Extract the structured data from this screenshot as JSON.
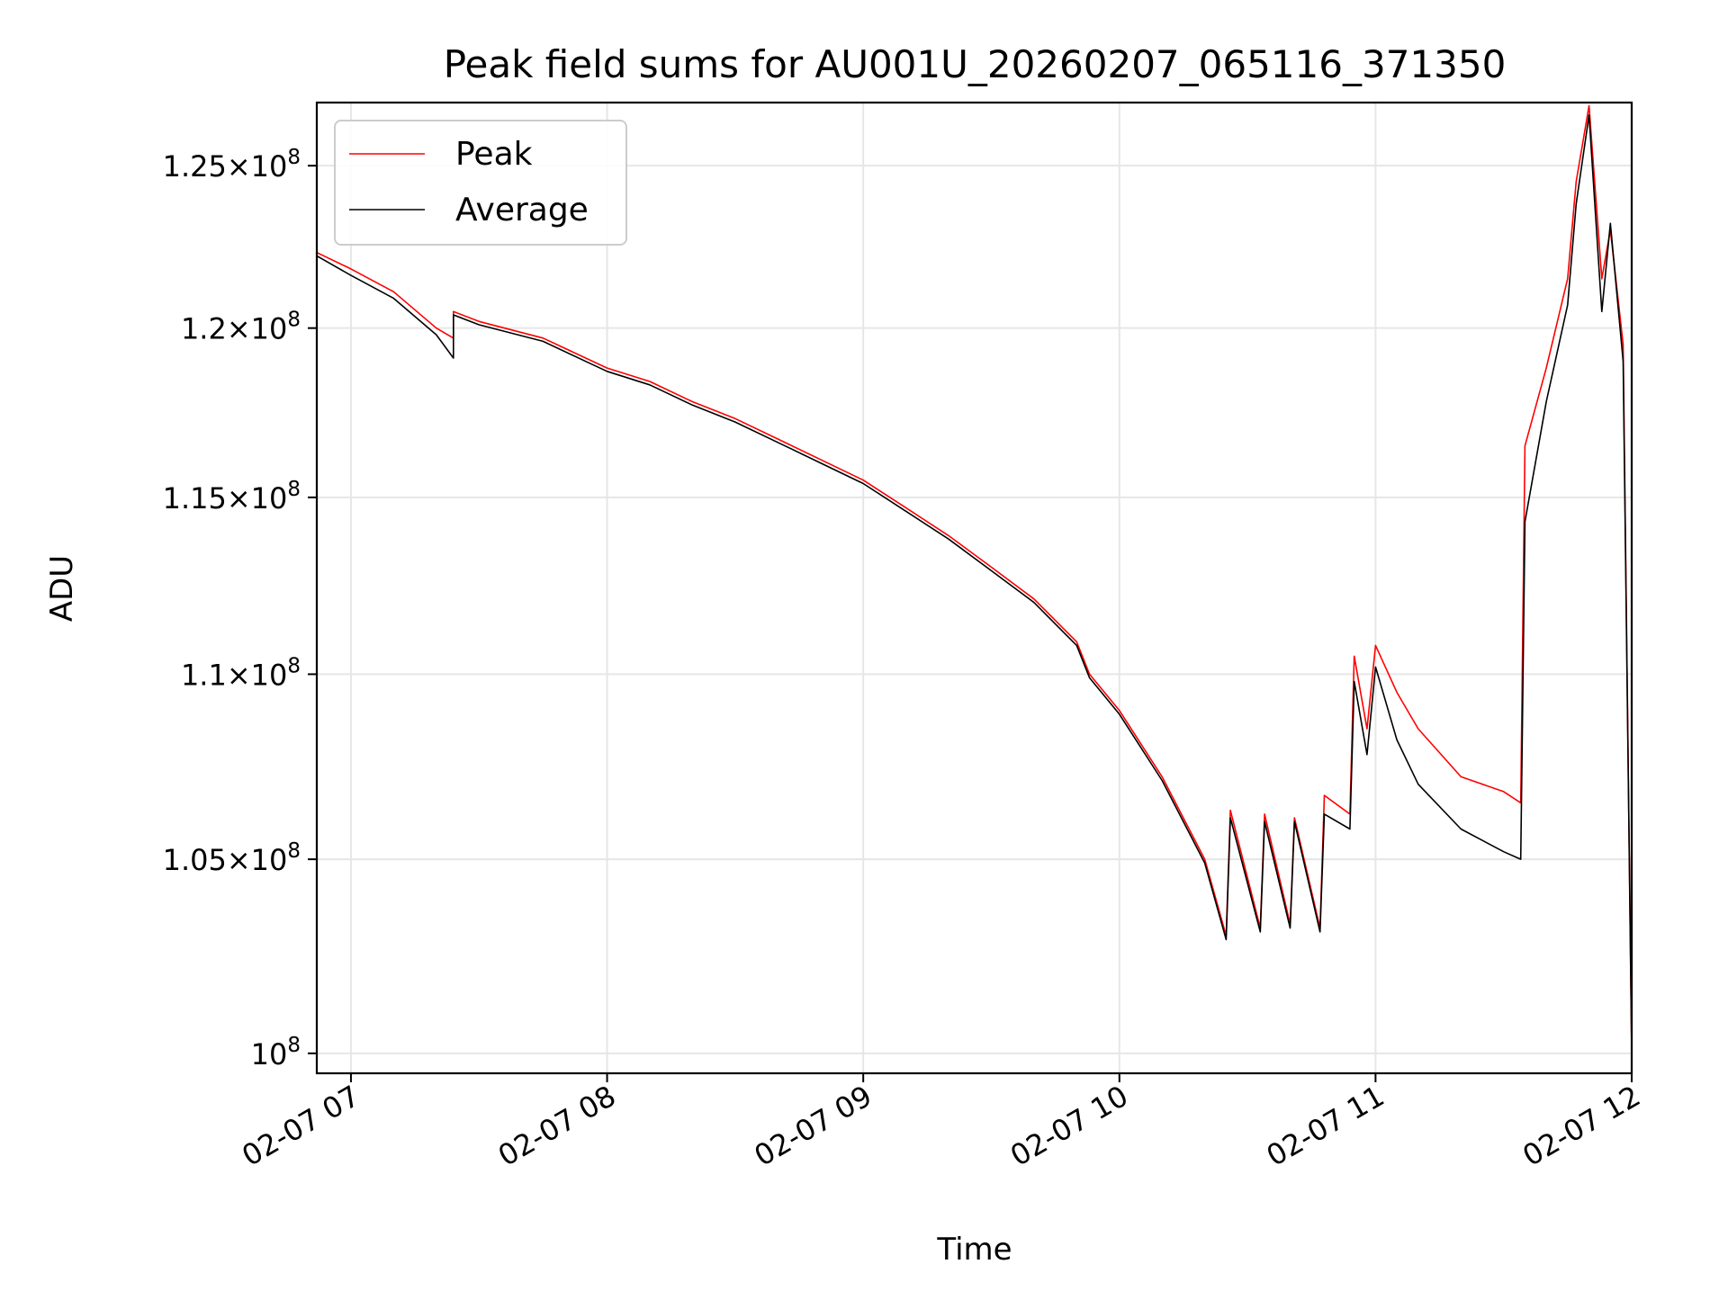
{
  "chart_data": {
    "type": "line",
    "title": "Peak field sums for AU001U_20260207_065116_371350",
    "xlabel": "Time",
    "ylabel": "ADU",
    "yscale": "log",
    "grid": true,
    "legend_position": "upper-left",
    "x_range": [
      "2026-02-07 06:52",
      "2026-02-07 12:00"
    ],
    "ylim": [
      99500000,
      127000000
    ],
    "x_ticks": [
      {
        "value": "2026-02-07 07:00",
        "label": "02-07 07"
      },
      {
        "value": "2026-02-07 08:00",
        "label": "02-07 08"
      },
      {
        "value": "2026-02-07 09:00",
        "label": "02-07 09"
      },
      {
        "value": "2026-02-07 10:00",
        "label": "02-07 10"
      },
      {
        "value": "2026-02-07 11:00",
        "label": "02-07 11"
      },
      {
        "value": "2026-02-07 12:00",
        "label": "02-07 12"
      }
    ],
    "y_ticks": [
      {
        "value": 100000000,
        "mantissa": "",
        "exponent": "8",
        "label": "10^8"
      },
      {
        "value": 105000000,
        "mantissa": "1.05",
        "exponent": "8",
        "label": "1.05×10^8"
      },
      {
        "value": 110000000,
        "mantissa": "1.1",
        "exponent": "8",
        "label": "1.1×10^8"
      },
      {
        "value": 115000000,
        "mantissa": "1.15",
        "exponent": "8",
        "label": "1.15×10^8"
      },
      {
        "value": 120000000,
        "mantissa": "1.2",
        "exponent": "8",
        "label": "1.2×10^8"
      },
      {
        "value": 125000000,
        "mantissa": "1.25",
        "exponent": "8",
        "label": "1.25×10^8"
      }
    ],
    "series": [
      {
        "name": "Peak",
        "color": "#ff0000",
        "x": [
          "2026-02-07 06:52",
          "2026-02-07 07:00",
          "2026-02-07 07:10",
          "2026-02-07 07:20",
          "2026-02-07 07:24",
          "2026-02-07 07:24",
          "2026-02-07 07:30",
          "2026-02-07 07:45",
          "2026-02-07 07:55",
          "2026-02-07 08:00",
          "2026-02-07 08:10",
          "2026-02-07 08:20",
          "2026-02-07 08:30",
          "2026-02-07 08:40",
          "2026-02-07 08:50",
          "2026-02-07 09:00",
          "2026-02-07 09:10",
          "2026-02-07 09:20",
          "2026-02-07 09:30",
          "2026-02-07 09:40",
          "2026-02-07 09:50",
          "2026-02-07 09:53",
          "2026-02-07 10:00",
          "2026-02-07 10:10",
          "2026-02-07 10:20",
          "2026-02-07 10:25",
          "2026-02-07 10:26",
          "2026-02-07 10:33",
          "2026-02-07 10:34",
          "2026-02-07 10:40",
          "2026-02-07 10:41",
          "2026-02-07 10:47",
          "2026-02-07 10:48",
          "2026-02-07 10:54",
          "2026-02-07 10:55",
          "2026-02-07 10:58",
          "2026-02-07 11:00",
          "2026-02-07 11:05",
          "2026-02-07 11:10",
          "2026-02-07 11:20",
          "2026-02-07 11:30",
          "2026-02-07 11:34",
          "2026-02-07 11:35",
          "2026-02-07 11:40",
          "2026-02-07 11:45",
          "2026-02-07 11:47",
          "2026-02-07 11:50",
          "2026-02-07 11:53",
          "2026-02-07 11:55",
          "2026-02-07 11:58",
          "2026-02-07 12:00"
        ],
        "y": [
          122300000,
          121800000,
          121100000,
          120000000,
          119700000,
          120500000,
          120200000,
          119700000,
          119100000,
          118800000,
          118400000,
          117800000,
          117300000,
          116700000,
          116100000,
          115500000,
          114700000,
          113900000,
          113000000,
          112100000,
          110900000,
          110000000,
          109000000,
          107200000,
          105000000,
          103000000,
          106300000,
          103200000,
          106200000,
          103300000,
          106100000,
          103200000,
          106700000,
          106200000,
          110500000,
          108500000,
          110800000,
          109500000,
          108500000,
          107200000,
          106800000,
          106500000,
          116500000,
          118800000,
          121500000,
          124500000,
          126900000,
          121500000,
          123000000,
          119500000,
          100000000
        ]
      },
      {
        "name": "Average",
        "color": "#000000",
        "x": [
          "2026-02-07 06:52",
          "2026-02-07 07:00",
          "2026-02-07 07:10",
          "2026-02-07 07:20",
          "2026-02-07 07:24",
          "2026-02-07 07:24",
          "2026-02-07 07:30",
          "2026-02-07 07:45",
          "2026-02-07 07:55",
          "2026-02-07 08:00",
          "2026-02-07 08:10",
          "2026-02-07 08:20",
          "2026-02-07 08:30",
          "2026-02-07 08:40",
          "2026-02-07 08:50",
          "2026-02-07 09:00",
          "2026-02-07 09:10",
          "2026-02-07 09:20",
          "2026-02-07 09:30",
          "2026-02-07 09:40",
          "2026-02-07 09:50",
          "2026-02-07 09:53",
          "2026-02-07 10:00",
          "2026-02-07 10:10",
          "2026-02-07 10:20",
          "2026-02-07 10:25",
          "2026-02-07 10:26",
          "2026-02-07 10:33",
          "2026-02-07 10:34",
          "2026-02-07 10:40",
          "2026-02-07 10:41",
          "2026-02-07 10:47",
          "2026-02-07 10:48",
          "2026-02-07 10:54",
          "2026-02-07 10:55",
          "2026-02-07 10:58",
          "2026-02-07 11:00",
          "2026-02-07 11:05",
          "2026-02-07 11:10",
          "2026-02-07 11:20",
          "2026-02-07 11:30",
          "2026-02-07 11:34",
          "2026-02-07 11:35",
          "2026-02-07 11:40",
          "2026-02-07 11:45",
          "2026-02-07 11:47",
          "2026-02-07 11:50",
          "2026-02-07 11:53",
          "2026-02-07 11:55",
          "2026-02-07 11:58",
          "2026-02-07 12:00"
        ],
        "y": [
          122200000,
          121600000,
          120900000,
          119800000,
          119100000,
          120400000,
          120100000,
          119600000,
          119000000,
          118700000,
          118300000,
          117700000,
          117200000,
          116600000,
          116000000,
          115400000,
          114600000,
          113800000,
          112900000,
          112000000,
          110800000,
          109900000,
          108900000,
          107100000,
          104900000,
          102900000,
          106100000,
          103100000,
          106000000,
          103200000,
          106000000,
          103100000,
          106200000,
          105800000,
          109800000,
          107800000,
          110200000,
          108200000,
          107000000,
          105800000,
          105200000,
          105000000,
          114300000,
          117800000,
          120700000,
          123800000,
          126600000,
          120500000,
          123200000,
          119000000,
          100000000
        ]
      }
    ]
  }
}
